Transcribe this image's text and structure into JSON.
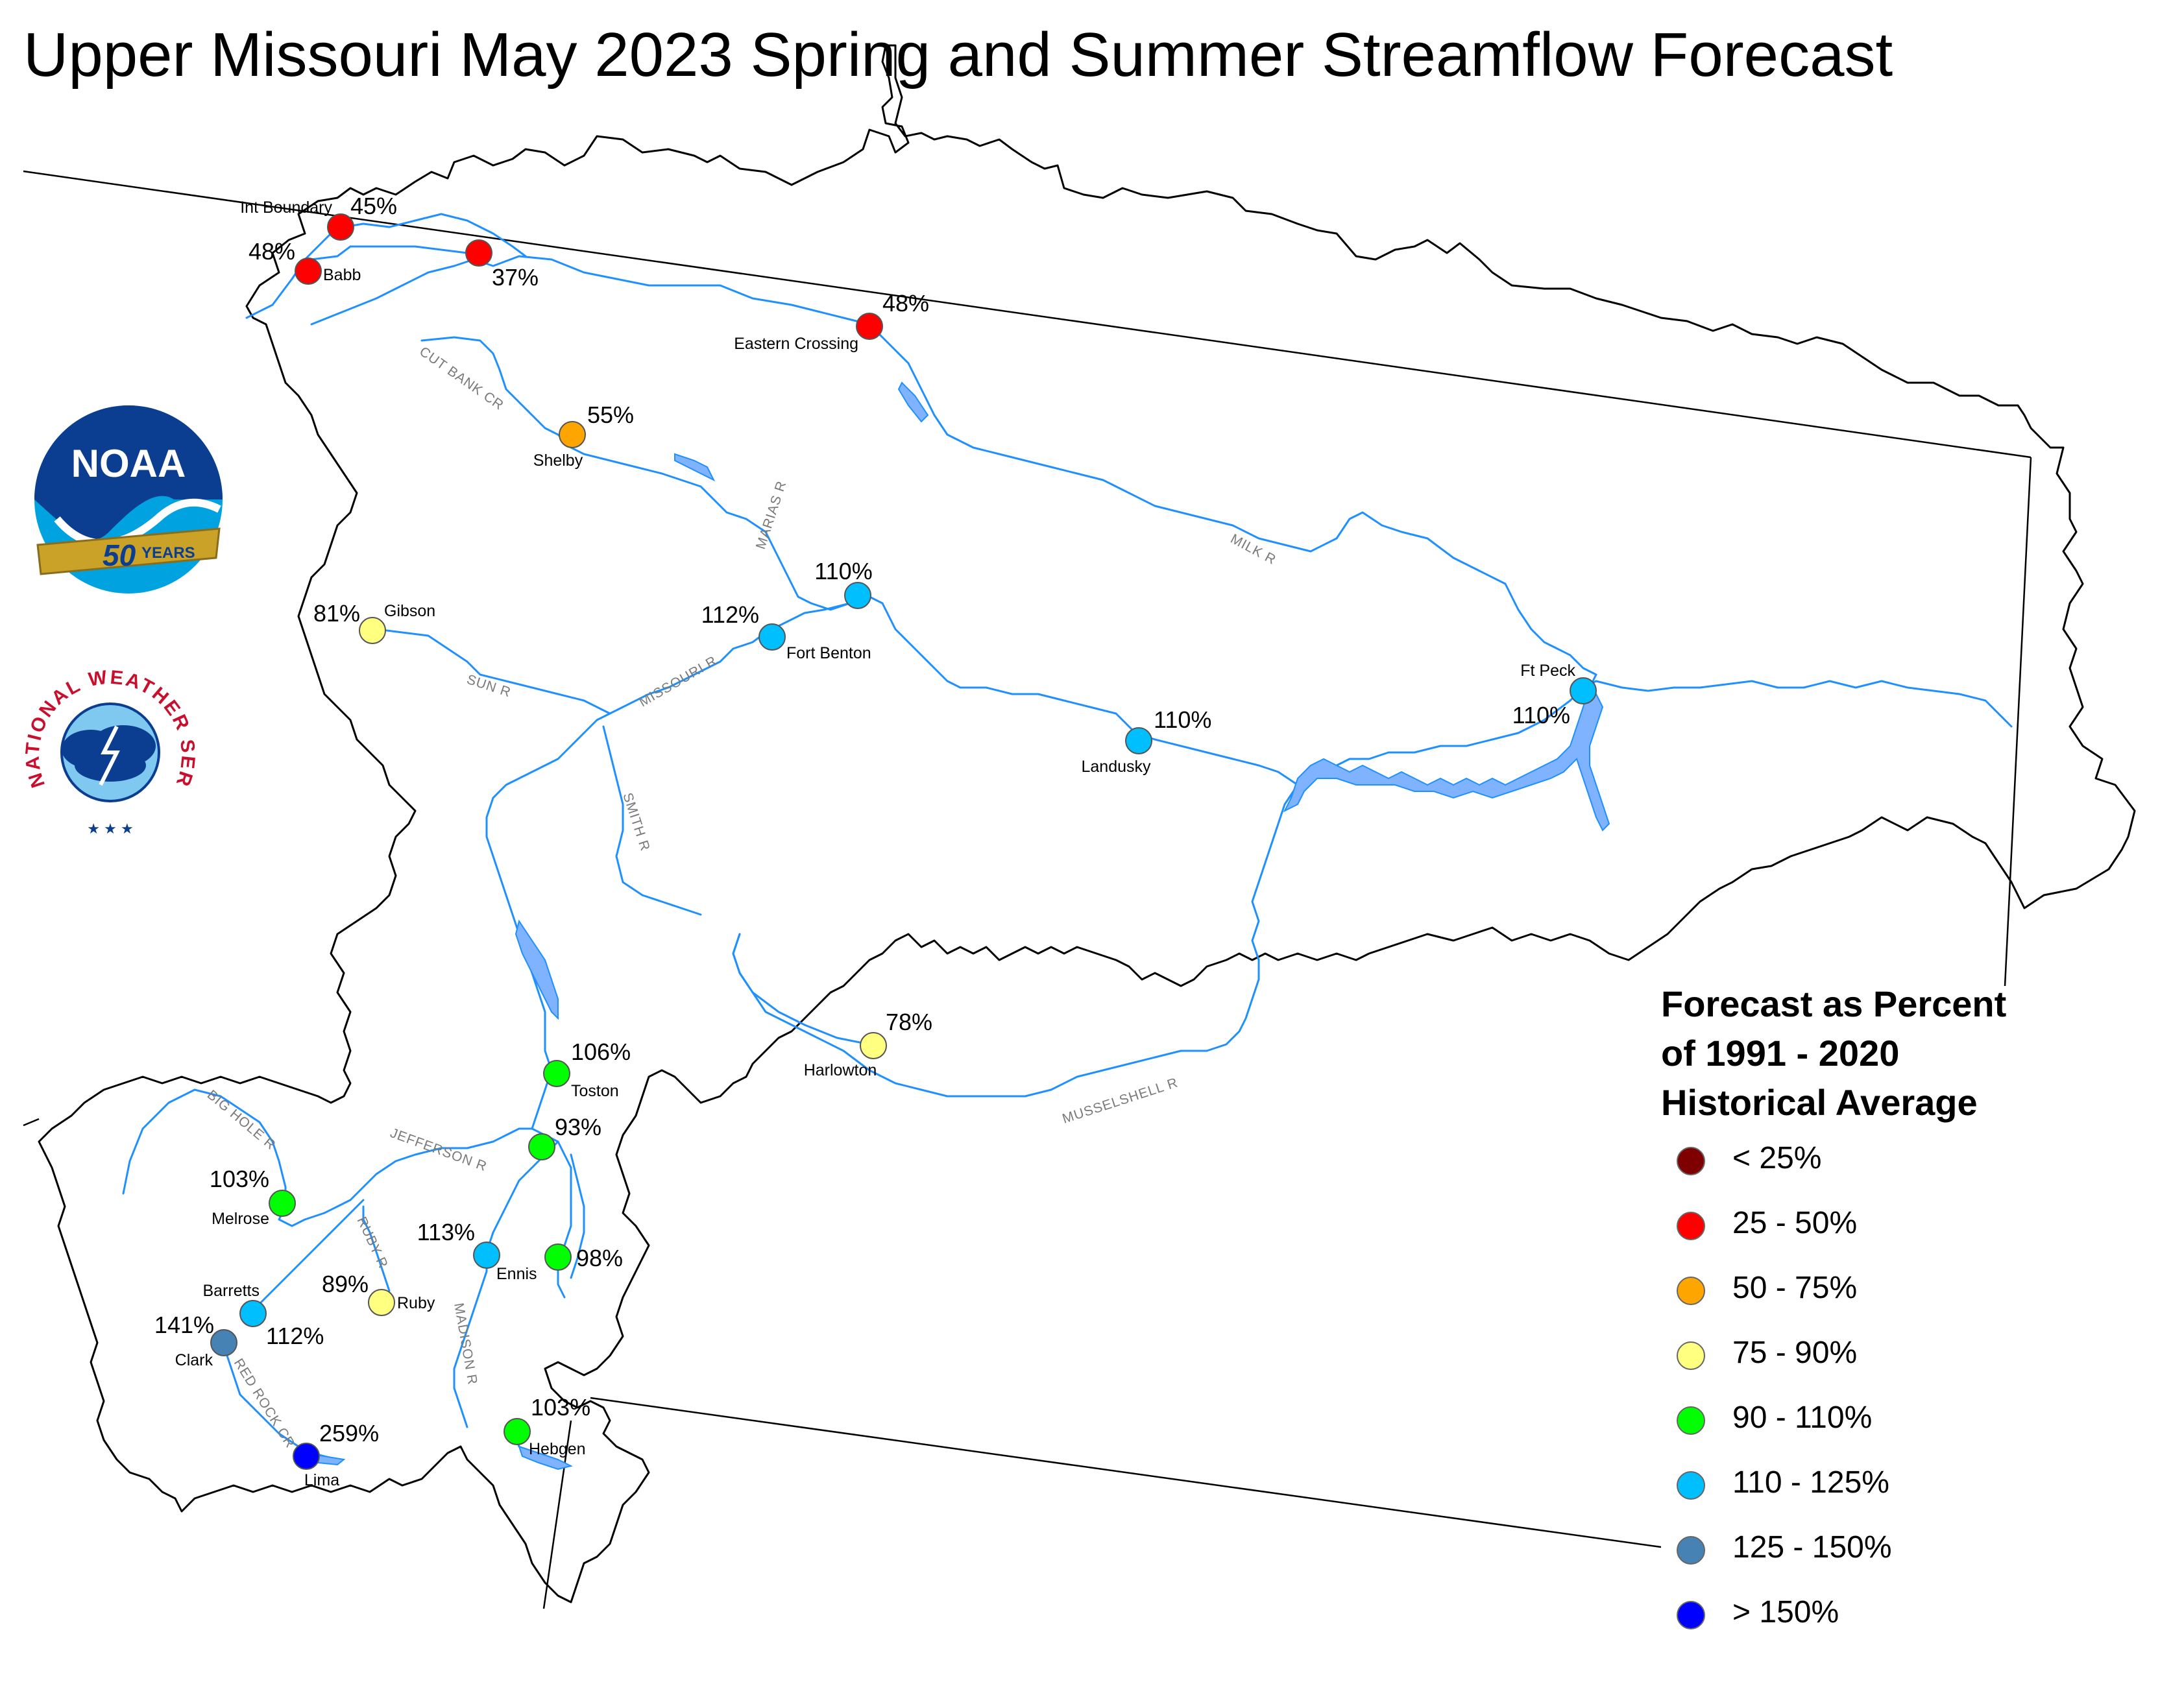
{
  "title": "Upper Missouri May 2023 Spring and Summer Streamflow Forecast",
  "legend": {
    "title_lines": [
      "Forecast as Percent",
      "of 1991 - 2020",
      "Historical Average"
    ],
    "items": [
      {
        "label": "< 25%",
        "color": "#7f0000"
      },
      {
        "label": "25 - 50%",
        "color": "#ff0000"
      },
      {
        "label": "50 - 75%",
        "color": "#ffa500"
      },
      {
        "label": "75 - 90%",
        "color": "#ffff80"
      },
      {
        "label": "90 - 110%",
        "color": "#00ff00"
      },
      {
        "label": "110 - 125%",
        "color": "#00bfff"
      },
      {
        "label": "125 - 150%",
        "color": "#4682b4"
      },
      {
        "label": "> 150%",
        "color": "#0000ff"
      }
    ]
  },
  "sites": [
    {
      "name": "Int Boundary",
      "pct": "45%",
      "color": "#ff0000"
    },
    {
      "name": "Babb",
      "pct": "48%",
      "color": "#ff0000"
    },
    {
      "name": "",
      "pct": "37%",
      "color": "#ff0000"
    },
    {
      "name": "Eastern Crossing",
      "pct": "48%",
      "color": "#ff0000"
    },
    {
      "name": "Shelby",
      "pct": "55%",
      "color": "#ffa500"
    },
    {
      "name": "",
      "pct": "110%",
      "color": "#00bfff"
    },
    {
      "name": "Fort Benton",
      "pct": "112%",
      "color": "#00bfff"
    },
    {
      "name": "Gibson",
      "pct": "81%",
      "color": "#ffff80"
    },
    {
      "name": "Landusky",
      "pct": "110%",
      "color": "#00bfff"
    },
    {
      "name": "Ft Peck",
      "pct": "110%",
      "color": "#00bfff"
    },
    {
      "name": "Harlowton",
      "pct": "78%",
      "color": "#ffff80"
    },
    {
      "name": "Toston",
      "pct": "106%",
      "color": "#00ff00"
    },
    {
      "name": "",
      "pct": "93%",
      "color": "#00ff00"
    },
    {
      "name": "Melrose",
      "pct": "103%",
      "color": "#00ff00"
    },
    {
      "name": "Ennis",
      "pct": "113%",
      "color": "#00bfff"
    },
    {
      "name": "",
      "pct": "98%",
      "color": "#00ff00"
    },
    {
      "name": "Ruby",
      "pct": "89%",
      "color": "#ffff80"
    },
    {
      "name": "Barretts",
      "pct": "112%",
      "color": "#00bfff"
    },
    {
      "name": "Clark",
      "pct": "141%",
      "color": "#4682b4"
    },
    {
      "name": "Lima",
      "pct": "259%",
      "color": "#0000ff"
    },
    {
      "name": "Hebgen",
      "pct": "103%",
      "color": "#00ff00"
    }
  ],
  "rivers": [
    "CUT BANK CR",
    "MARIAS R",
    "MILK R",
    "SUN R",
    "MISSOURI R",
    "SMITH R",
    "MUSSELSHELL R",
    "BIG HOLE R",
    "JEFFERSON R",
    "RUBY R",
    "MADISON R",
    "RED ROCK CR"
  ],
  "logos": {
    "noaa": {
      "text": "NOAA",
      "banner": "50",
      "banner_suffix": "YEARS"
    },
    "nws": {
      "text": "NATIONAL WEATHER SERVICE"
    }
  },
  "colors": {
    "river": "#1e90ff",
    "lake_fill": "#7fb2ff",
    "border": "#000000"
  }
}
